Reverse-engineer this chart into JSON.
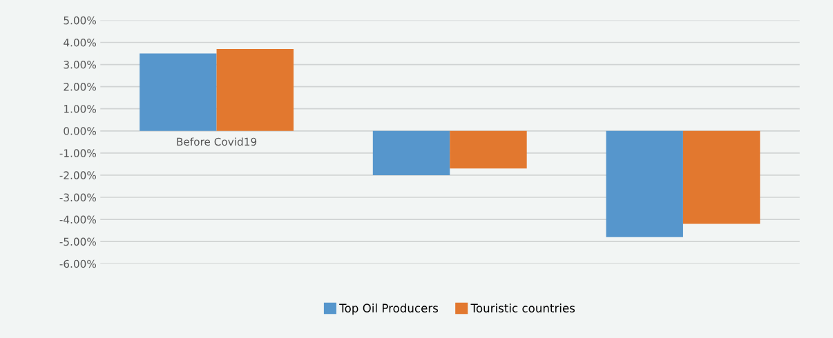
{
  "chart_data": {
    "type": "bar",
    "categories": [
      "Before Covid19",
      null,
      null
    ],
    "series": [
      {
        "name": "Top Oil Producers",
        "color": "#5696cc",
        "values": [
          3.5,
          -2.0,
          -4.8
        ]
      },
      {
        "name": "Touristic countries",
        "color": "#e2782f",
        "values": [
          3.7,
          -1.7,
          -4.2
        ]
      }
    ],
    "ylim": [
      -6,
      5
    ],
    "yticks": [
      {
        "value": -6,
        "label": "-6.00%"
      },
      {
        "value": -5,
        "label": "-5.00%"
      },
      {
        "value": -4,
        "label": "-4.00%"
      },
      {
        "value": -3,
        "label": "-3.00%"
      },
      {
        "value": -2,
        "label": "-2.00%"
      },
      {
        "value": -1,
        "label": "-1.00%"
      },
      {
        "value": 0,
        "label": "0.00%"
      },
      {
        "value": 1,
        "label": "1.00%"
      },
      {
        "value": 2,
        "label": "2.00%"
      },
      {
        "value": 3,
        "label": "3.00%"
      },
      {
        "value": 4,
        "label": "4.00%"
      },
      {
        "value": 5,
        "label": "5.00%"
      }
    ],
    "grid": "y",
    "legend": "bottom"
  }
}
